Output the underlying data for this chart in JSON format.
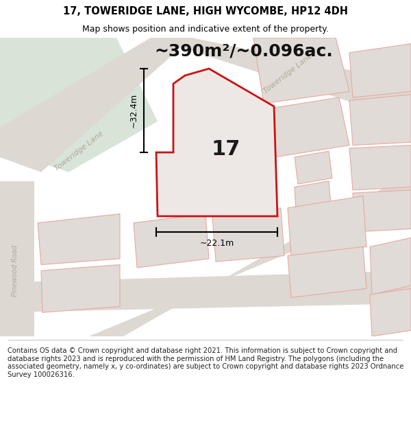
{
  "title": "17, TOWERIDGE LANE, HIGH WYCOMBE, HP12 4DH",
  "subtitle": "Map shows position and indicative extent of the property.",
  "footer": "Contains OS data © Crown copyright and database right 2021. This information is subject to Crown copyright and database rights 2023 and is reproduced with the permission of HM Land Registry. The polygons (including the associated geometry, namely x, y co-ordinates) are subject to Crown copyright and database rights 2023 Ordnance Survey 100026316.",
  "area_label": "~390m²/~0.096ac.",
  "width_label": "~22.1m",
  "height_label": "~32.4m",
  "number_label": "17",
  "map_bg": "#f2f0ee",
  "green_color": "#d8e4d8",
  "road_color": "#ddd8d2",
  "building_fill": "#e0dbd6",
  "building_stroke": "#e8a8a0",
  "red_outline": "#cc1111",
  "plot_fill": "#ece8e6",
  "title_fontsize": 10.5,
  "subtitle_fontsize": 9,
  "footer_fontsize": 7.2,
  "area_fontsize": 18,
  "number_fontsize": 22,
  "dim_fontsize": 9,
  "road_label_color": "#b0a898",
  "road_label_fontsize": 8
}
